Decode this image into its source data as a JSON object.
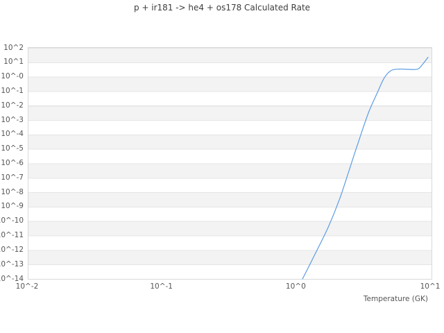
{
  "title": "p + ir181 -> he4 + os178 Calculated Rate",
  "x_axis": {
    "label": "Temperature (GK)",
    "ticks": [
      "10^-2",
      "10^-1",
      "10^0",
      "10^1"
    ]
  },
  "y_axis": {
    "ticks": [
      "10^2",
      "10^1",
      "10^-0",
      "10^-1",
      "10^-2",
      "10^-3",
      "10^-4",
      "10^-5",
      "10^-6",
      "10^-7",
      "10^-8",
      "10^-9",
      "10^-10",
      "10^-11",
      "10^-12",
      "10^-13",
      "10^-14"
    ]
  },
  "colors": {
    "line": "#5b9ce4",
    "band": "#f3f3f3",
    "grid": "#e4e4e4",
    "spine": "#d9d9d9",
    "tick_text": "#555555",
    "title_text": "#3d3d3d"
  },
  "chart_data": {
    "type": "line",
    "title": "p + ir181 -> he4 + os178 Calculated Rate",
    "xlabel": "Temperature (GK)",
    "ylabel": "",
    "xscale": "log",
    "yscale": "log",
    "xlim": [
      0.01,
      10
    ],
    "ylim": [
      1e-14,
      100
    ],
    "x_ticks_log10": [
      -2,
      -1,
      0,
      1
    ],
    "y_ticks_log10": [
      2,
      1,
      0,
      -1,
      -2,
      -3,
      -4,
      -5,
      -6,
      -7,
      -8,
      -9,
      -10,
      -11,
      -12,
      -13,
      -14
    ],
    "grid": "horizontal alternating gray/white decade bands, no vertical gridlines",
    "legend": null,
    "series": [
      {
        "name": "Calculated rate",
        "color": "#5b9ce4",
        "points_log10": [
          [
            0.04,
            -14.0
          ],
          [
            0.139,
            -12.17
          ],
          [
            0.232,
            -10.4
          ],
          [
            0.314,
            -8.52
          ],
          [
            0.381,
            -6.65
          ],
          [
            0.438,
            -5.01
          ],
          [
            0.49,
            -3.57
          ],
          [
            0.536,
            -2.37
          ],
          [
            0.598,
            -1.08
          ],
          [
            0.649,
            -0.07
          ],
          [
            0.701,
            0.44
          ],
          [
            0.763,
            0.53
          ],
          [
            0.83,
            0.51
          ],
          [
            0.897,
            0.53
          ],
          [
            0.933,
            0.85
          ],
          [
            0.974,
            1.35
          ]
        ]
      }
    ]
  }
}
